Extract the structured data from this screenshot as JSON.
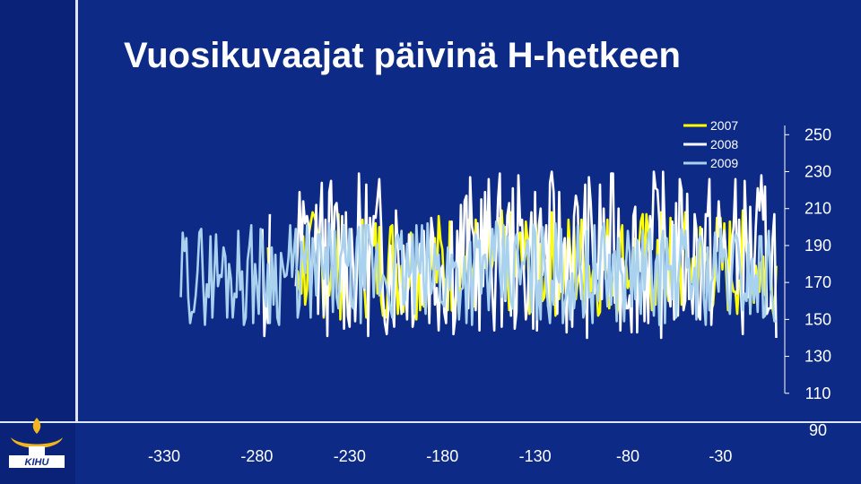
{
  "slide": {
    "title": "Vuosikuvaajat päivinä H-hetkeen",
    "logo_text": "KIHU",
    "colors": {
      "background": "#0d2a86",
      "text": "#ffffff"
    }
  },
  "chart_data": {
    "type": "line",
    "title": "Vuosikuvaajat päivinä H-hetkeen",
    "xlabel": "",
    "ylabel": "",
    "xlim": [
      -345,
      8
    ],
    "ylim": [
      90,
      255
    ],
    "x_ticks": [
      -330,
      -280,
      -230,
      -180,
      -130,
      -80,
      -30
    ],
    "y_ticks": [
      250,
      230,
      210,
      190,
      170,
      150,
      130,
      110,
      90
    ],
    "y_axis_side": "right",
    "legend": {
      "position": "top-right",
      "entries": [
        "2007",
        "2008",
        "2009"
      ]
    },
    "series": [
      {
        "name": "2007",
        "color": "#ffff00",
        "x_start": -325,
        "x_end": 0,
        "values": [
          null,
          null,
          null,
          null,
          null,
          null,
          null,
          null,
          null,
          null,
          null,
          null,
          null,
          null,
          null,
          null,
          null,
          null,
          null,
          null,
          null,
          null,
          null,
          null,
          null,
          null,
          null,
          null,
          null,
          null,
          null,
          null,
          null,
          null,
          null,
          null,
          null,
          null,
          null,
          null,
          null,
          null,
          null,
          null,
          null,
          null,
          null,
          null,
          null,
          null,
          null,
          null,
          null,
          null,
          null,
          null,
          null,
          null,
          null,
          null,
          null,
          null,
          null,
          null,
          null,
          null,
          null,
          null,
          null,
          null,
          null,
          null,
          null,
          null,
          null,
          null,
          null,
          null,
          null,
          null,
          null,
          null,
          null,
          null,
          null,
          null,
          null,
          null,
          null,
          null,
          null,
          null,
          null,
          null,
          null,
          null,
          null,
          null,
          null,
          null,
          null,
          null,
          null,
          null,
          null,
          null,
          null,
          null,
          null,
          null,
          null,
          null,
          null,
          null,
          null,
          null,
          null,
          null,
          null,
          null,
          null,
          null,
          null,
          null,
          null,
          null,
          null,
          null,
          null,
          null,
          null,
          null,
          null,
          null,
          null,
          null,
          null,
          null,
          null,
          null,
          null,
          null,
          null,
          null,
          null,
          null,
          null,
          null,
          null,
          null,
          null,
          null,
          null,
          null,
          null,
          null,
          null,
          null,
          null,
          null,
          null,
          null,
          null,
          null,
          null,
          null,
          null,
          null,
          null,
          null,
          null,
          null,
          null,
          null,
          null,
          null,
          null,
          null,
          null,
          null,
          null,
          null,
          null,
          null,
          null,
          null,
          null,
          null,
          null,
          null,
          null,
          null,
          null,
          null,
          null,
          null,
          null,
          null,
          null,
          null,
          null,
          null,
          null,
          null,
          null,
          null,
          null,
          null,
          null,
          null,
          null,
          null,
          null,
          null,
          null,
          null,
          null,
          null,
          null,
          null,
          null,
          null,
          null,
          null,
          null,
          null,
          null,
          null,
          null,
          null,
          null,
          null,
          null,
          null,
          null,
          null,
          null,
          null,
          null,
          null,
          null,
          null,
          null,
          null,
          null,
          null,
          null,
          null,
          null,
          null,
          null,
          null,
          null,
          null,
          null,
          null,
          null,
          null,
          null,
          null,
          null,
          null,
          null,
          null,
          null,
          null,
          null,
          null,
          null,
          null,
          null,
          null,
          null,
          null,
          null,
          null,
          null,
          null,
          null,
          null,
          null,
          null,
          null,
          null,
          null,
          null,
          null,
          null,
          null,
          null,
          null,
          null,
          null,
          null,
          null,
          null,
          null,
          null,
          null,
          null,
          null,
          null,
          null,
          null,
          null,
          null,
          null,
          null,
          null,
          null,
          null,
          null,
          null,
          null,
          null,
          null,
          null,
          null,
          null,
          null,
          null,
          null,
          null,
          null,
          null,
          null,
          null,
          null,
          null,
          null,
          null,
          null,
          null,
          null,
          null,
          null,
          null,
          null,
          null,
          null,
          null,
          null,
          null,
          null,
          null,
          null,
          null,
          null,
          null
        ]
      },
      {
        "name": "2008",
        "color": "#ffffff",
        "x_start": -325,
        "x_end": 0,
        "values": []
      },
      {
        "name": "2009",
        "color": "#a9d2ef",
        "x_start": -325,
        "x_end": 0,
        "values": []
      }
    ]
  }
}
